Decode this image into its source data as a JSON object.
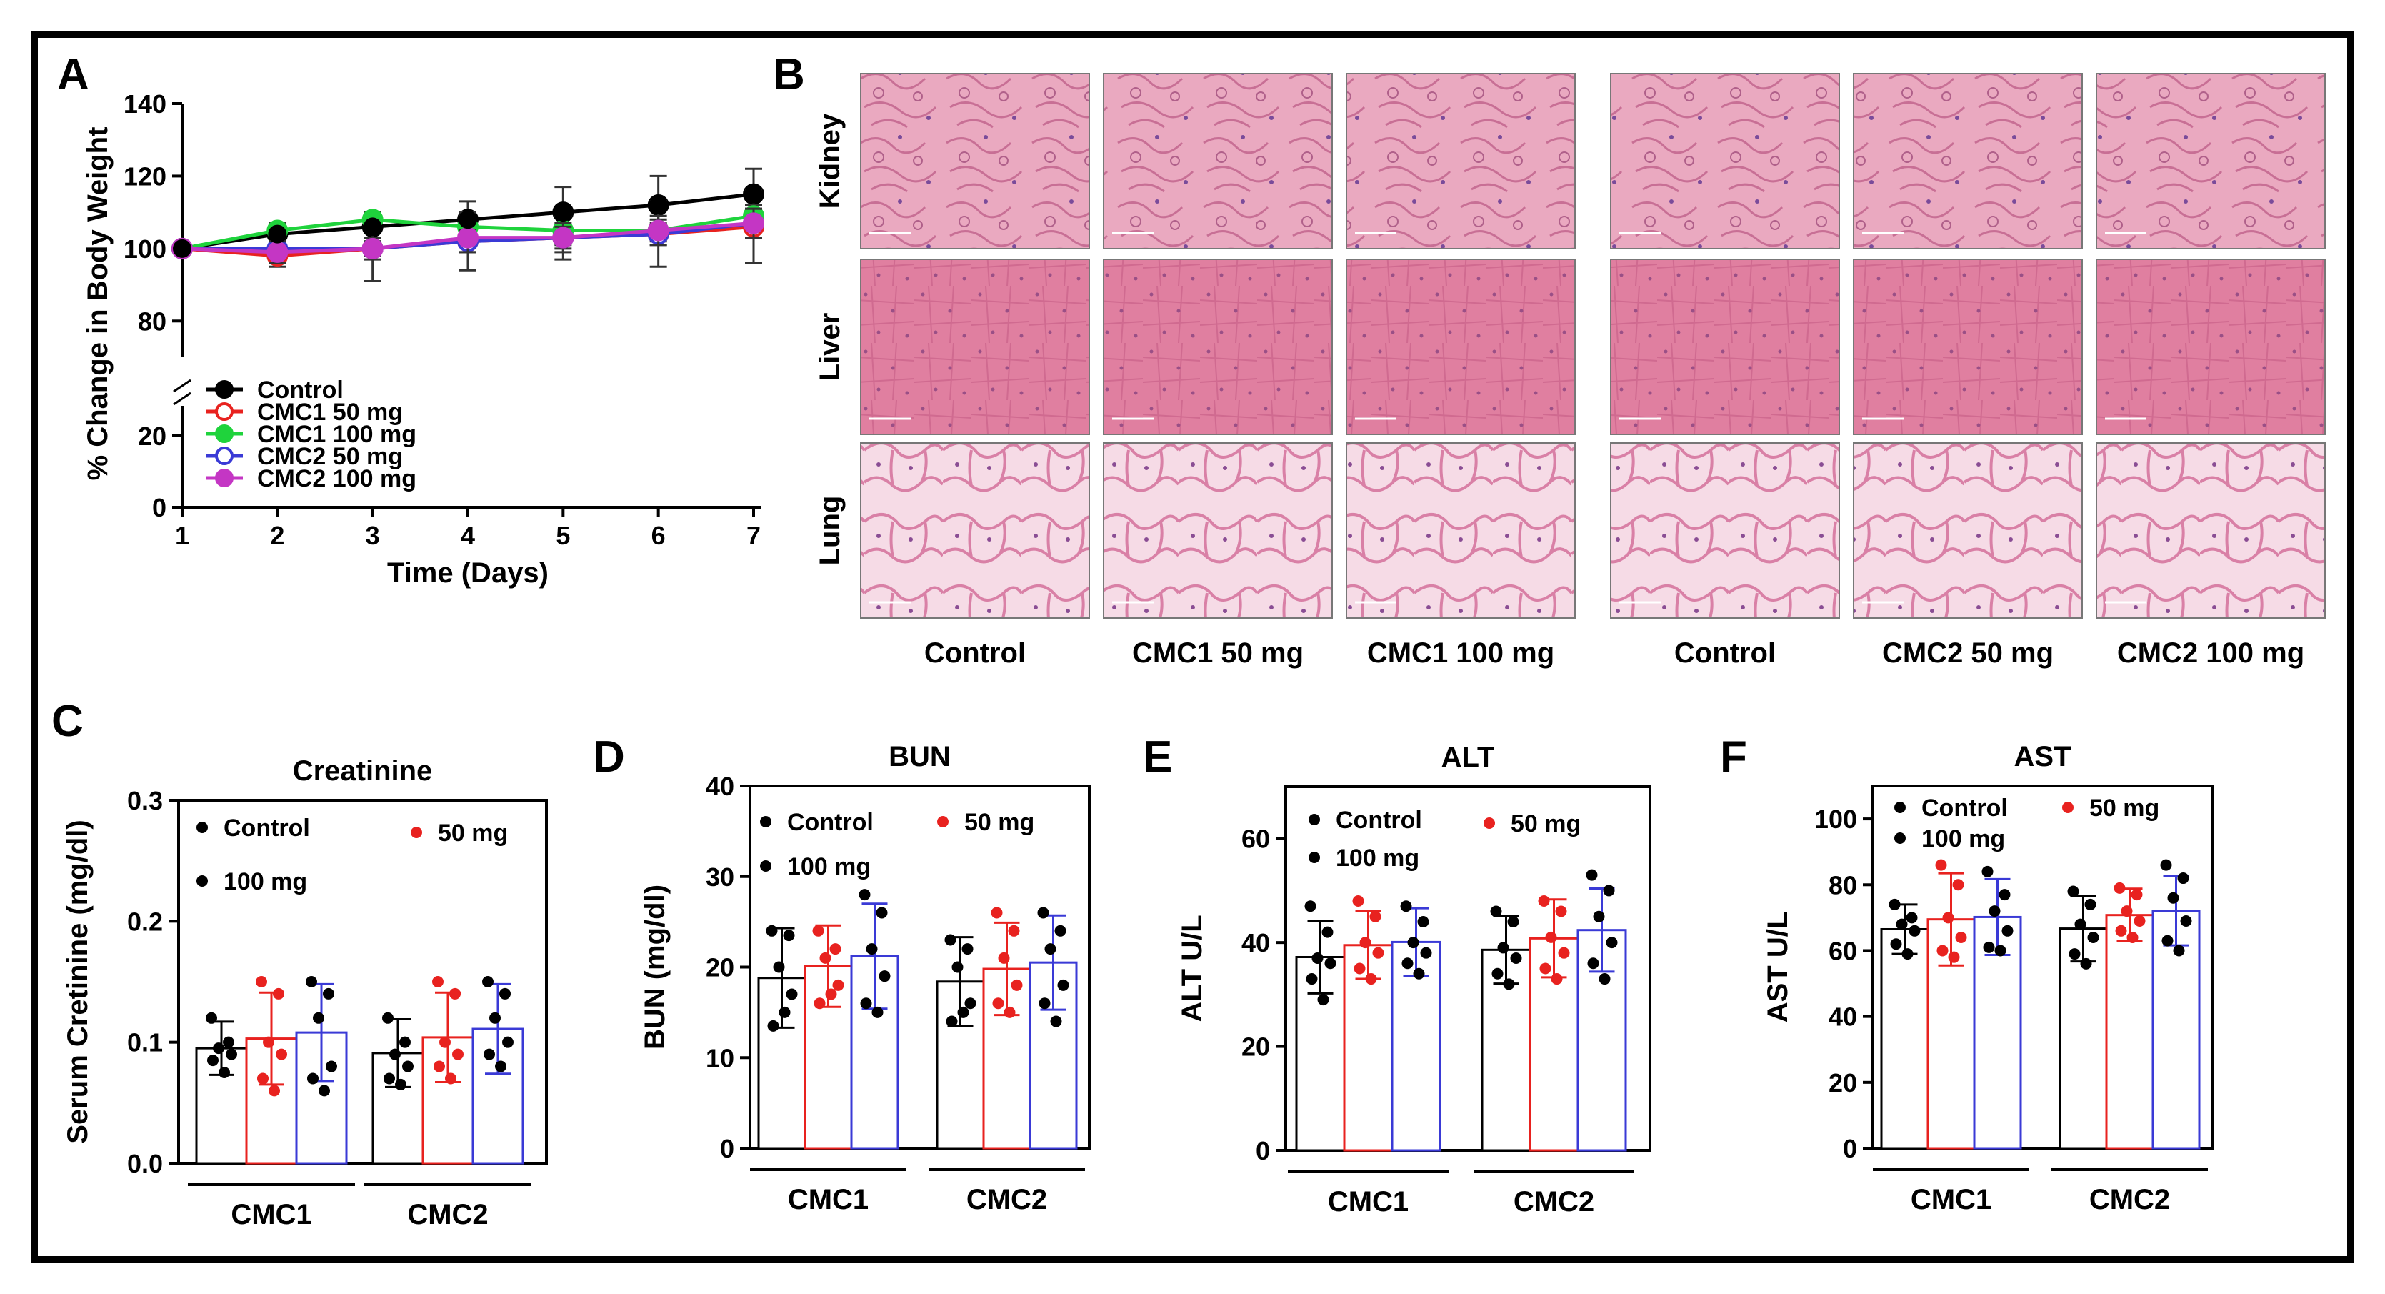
{
  "panels": {
    "A": "A",
    "B": "B",
    "C": "C",
    "D": "D",
    "E": "E",
    "F": "F"
  },
  "colors": {
    "control": "#000000",
    "cmc1_50": "#e8221f",
    "cmc1_100": "#1fd33c",
    "cmc2_50": "#3a3ad6",
    "cmc2_100": "#c436c4",
    "tissue_kidney": "#e8aac0",
    "tissue_liver": "#e17fa0",
    "tissue_lung": "#f3c5d6"
  },
  "histology": {
    "rows": [
      "Kidney",
      "Liver",
      "Lung"
    ],
    "columns": [
      "Control",
      "CMC1 50 mg",
      "CMC1 100 mg",
      "Control",
      "CMC2 50 mg",
      "CMC2 100 mg"
    ]
  },
  "chart_data": [
    {
      "id": "A",
      "type": "line",
      "xlabel": "Time (Days)",
      "ylabel": "% Change in Body Weight",
      "x": [
        1,
        2,
        3,
        4,
        5,
        6,
        7
      ],
      "xticks": [
        "1",
        "2",
        "3",
        "4",
        "5",
        "6",
        "7"
      ],
      "yticks_upper": [
        "80",
        "100",
        "120",
        "140"
      ],
      "yticks_lower": [
        "0",
        "20"
      ],
      "ylim_upper": [
        70,
        140
      ],
      "ylim_lower": [
        0,
        25
      ],
      "series": [
        {
          "name": "Control",
          "label": "Control",
          "color": "#000000",
          "filled": true,
          "values": [
            100,
            104,
            106,
            108,
            110,
            112,
            115
          ],
          "err": [
            0,
            3,
            4,
            5,
            7,
            8,
            7
          ]
        },
        {
          "name": "CMC1 50 mg",
          "label": "CMC1   50 mg",
          "color": "#e8221f",
          "filled": false,
          "values": [
            100,
            98,
            100,
            102,
            103,
            104,
            106
          ],
          "err": [
            0,
            3,
            9,
            8,
            6,
            9,
            10
          ]
        },
        {
          "name": "CMC1 100 mg",
          "label": "CMC1 100 mg",
          "color": "#1fd33c",
          "filled": true,
          "values": [
            100,
            105,
            108,
            106,
            105,
            105,
            109
          ],
          "err": [
            0,
            2,
            2,
            3,
            4,
            3,
            3
          ]
        },
        {
          "name": "CMC2 50 mg",
          "label": "CMC2   50 mg",
          "color": "#3a3ad6",
          "filled": false,
          "values": [
            100,
            100,
            100,
            102,
            103,
            104,
            107
          ],
          "err": [
            0,
            2,
            2,
            3,
            3,
            3,
            4
          ]
        },
        {
          "name": "CMC2 100 mg",
          "label": "CMC2 100 mg",
          "color": "#c436c4",
          "filled": true,
          "values": [
            100,
            99,
            100,
            103,
            103,
            105,
            107
          ],
          "err": [
            0,
            3,
            3,
            4,
            4,
            4,
            4
          ]
        }
      ]
    },
    {
      "id": "C",
      "type": "bar",
      "title": "Creatinine",
      "ylabel": "Serum Cretinine  (mg/dl)",
      "ylim": [
        0,
        0.3
      ],
      "yticks": [
        "0.0",
        "0.1",
        "0.2",
        "0.3"
      ],
      "groups": [
        "CMC1",
        "CMC2"
      ],
      "legend": {
        "control": "Control",
        "mid": "50 mg",
        "high": "100 mg"
      },
      "bars": [
        {
          "group": "CMC1",
          "series": "Control",
          "color": "#000000",
          "mean": 0.095,
          "err": 0.022,
          "points": [
            0.12,
            0.1,
            0.095,
            0.09,
            0.085,
            0.075
          ]
        },
        {
          "group": "CMC1",
          "series": "50 mg",
          "color": "#e8221f",
          "mean": 0.103,
          "err": 0.038,
          "points": [
            0.15,
            0.14,
            0.1,
            0.09,
            0.07,
            0.06
          ]
        },
        {
          "group": "CMC1",
          "series": "100 mg",
          "color": "#3a3ad6",
          "mean": 0.108,
          "err": 0.04,
          "points": [
            0.15,
            0.14,
            0.12,
            0.08,
            0.07,
            0.06
          ]
        },
        {
          "group": "CMC2",
          "series": "Control",
          "color": "#000000",
          "mean": 0.091,
          "err": 0.028,
          "points": [
            0.12,
            0.1,
            0.09,
            0.08,
            0.07,
            0.065
          ]
        },
        {
          "group": "CMC2",
          "series": "50 mg",
          "color": "#e8221f",
          "mean": 0.104,
          "err": 0.037,
          "points": [
            0.15,
            0.14,
            0.1,
            0.09,
            0.08,
            0.07
          ]
        },
        {
          "group": "CMC2",
          "series": "100 mg",
          "color": "#3a3ad6",
          "mean": 0.111,
          "err": 0.037,
          "points": [
            0.15,
            0.14,
            0.12,
            0.1,
            0.09,
            0.08
          ]
        }
      ]
    },
    {
      "id": "D",
      "type": "bar",
      "title": "BUN",
      "ylabel": "BUN (mg/dl)",
      "ylim": [
        0,
        40
      ],
      "yticks": [
        "0",
        "10",
        "20",
        "30",
        "40"
      ],
      "groups": [
        "CMC1",
        "CMC2"
      ],
      "legend": {
        "control": "Control",
        "mid": "50 mg",
        "high": "100 mg"
      },
      "bars": [
        {
          "group": "CMC1",
          "series": "Control",
          "color": "#000000",
          "mean": 18.8,
          "err": 5.5,
          "points": [
            24,
            23.5,
            20,
            17,
            13.5,
            15
          ]
        },
        {
          "group": "CMC1",
          "series": "50 mg",
          "color": "#e8221f",
          "mean": 20.1,
          "err": 4.5,
          "points": [
            24,
            22,
            21,
            18,
            16,
            17
          ]
        },
        {
          "group": "CMC1",
          "series": "100 mg",
          "color": "#3a3ad6",
          "mean": 21.2,
          "err": 5.8,
          "points": [
            28,
            26,
            22,
            19,
            16,
            15
          ]
        },
        {
          "group": "CMC2",
          "series": "Control",
          "color": "#000000",
          "mean": 18.4,
          "err": 4.9,
          "points": [
            23,
            22,
            20,
            16,
            14,
            15
          ]
        },
        {
          "group": "CMC2",
          "series": "50 mg",
          "color": "#e8221f",
          "mean": 19.8,
          "err": 5.1,
          "points": [
            26,
            24,
            21,
            18,
            16,
            15
          ]
        },
        {
          "group": "CMC2",
          "series": "100 mg",
          "color": "#3a3ad6",
          "mean": 20.5,
          "err": 5.2,
          "points": [
            26,
            24,
            22,
            18,
            16,
            14
          ]
        }
      ]
    },
    {
      "id": "E",
      "type": "bar",
      "title": "ALT",
      "ylabel": "ALT U/L",
      "ylim": [
        0,
        70
      ],
      "yticks": [
        "0",
        "20",
        "40",
        "60"
      ],
      "groups": [
        "CMC1",
        "CMC2"
      ],
      "legend": {
        "control": "Control",
        "mid": "50 mg",
        "high": "100 mg"
      },
      "bars": [
        {
          "group": "CMC1",
          "series": "Control",
          "color": "#000000",
          "mean": 37.2,
          "err": 7,
          "points": [
            47,
            42,
            37,
            36,
            33,
            29
          ]
        },
        {
          "group": "CMC1",
          "series": "50 mg",
          "color": "#e8221f",
          "mean": 39.5,
          "err": 6.5,
          "points": [
            48,
            45,
            40,
            38,
            35,
            33
          ]
        },
        {
          "group": "CMC1",
          "series": "100 mg",
          "color": "#3a3ad6",
          "mean": 40.1,
          "err": 6.5,
          "points": [
            47,
            44,
            40,
            38,
            36,
            34
          ]
        },
        {
          "group": "CMC2",
          "series": "Control",
          "color": "#000000",
          "mean": 38.6,
          "err": 6.5,
          "points": [
            46,
            44,
            39,
            37,
            34,
            32
          ]
        },
        {
          "group": "CMC2",
          "series": "50 mg",
          "color": "#e8221f",
          "mean": 40.8,
          "err": 7.5,
          "points": [
            48,
            46,
            41,
            38,
            35,
            33
          ]
        },
        {
          "group": "CMC2",
          "series": "100 mg",
          "color": "#3a3ad6",
          "mean": 42.4,
          "err": 8,
          "points": [
            53,
            50,
            45,
            40,
            36,
            33
          ]
        }
      ]
    },
    {
      "id": "F",
      "type": "bar",
      "title": "AST",
      "ylabel": "AST U/L",
      "ylim": [
        0,
        110
      ],
      "yticks": [
        "0",
        "20",
        "40",
        "60",
        "80",
        "100"
      ],
      "groups": [
        "CMC1",
        "CMC2"
      ],
      "legend": {
        "control": "Control",
        "mid": "50 mg",
        "high": "100 mg"
      },
      "bars": [
        {
          "group": "CMC1",
          "series": "Control",
          "color": "#000000",
          "mean": 66.5,
          "err": 7.5,
          "points": [
            74,
            70,
            68,
            66,
            62,
            59
          ]
        },
        {
          "group": "CMC1",
          "series": "50 mg",
          "color": "#e8221f",
          "mean": 69.5,
          "err": 14,
          "points": [
            86,
            80,
            70,
            64,
            60,
            58
          ]
        },
        {
          "group": "CMC1",
          "series": "100 mg",
          "color": "#3a3ad6",
          "mean": 70.2,
          "err": 11.5,
          "points": [
            84,
            77,
            72,
            66,
            61,
            60
          ]
        },
        {
          "group": "CMC2",
          "series": "Control",
          "color": "#000000",
          "mean": 66.7,
          "err": 10,
          "points": [
            78,
            74,
            68,
            64,
            59,
            56
          ]
        },
        {
          "group": "CMC2",
          "series": "50 mg",
          "color": "#e8221f",
          "mean": 70.8,
          "err": 8,
          "points": [
            79,
            77,
            72,
            69,
            66,
            64
          ]
        },
        {
          "group": "CMC2",
          "series": "100 mg",
          "color": "#3a3ad6",
          "mean": 72.1,
          "err": 10.5,
          "points": [
            86,
            82,
            76,
            69,
            63,
            60
          ]
        }
      ]
    }
  ]
}
